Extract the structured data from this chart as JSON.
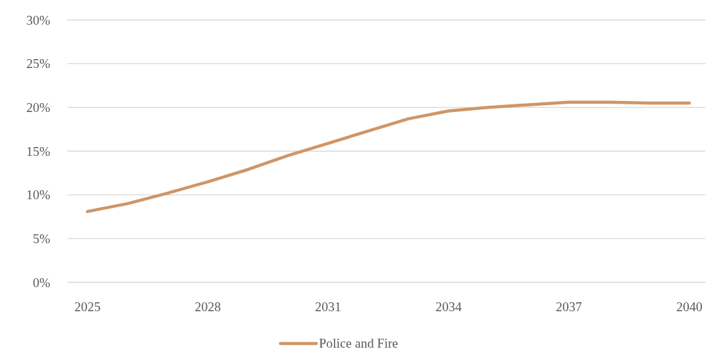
{
  "chart_data": {
    "type": "line",
    "x": [
      2025,
      2026,
      2027,
      2028,
      2029,
      2030,
      2031,
      2032,
      2033,
      2034,
      2035,
      2036,
      2037,
      2038,
      2039,
      2040
    ],
    "series": [
      {
        "name": "Police and Fire",
        "color": "#d09565",
        "values": [
          8.1,
          9.0,
          10.2,
          11.5,
          12.9,
          14.5,
          15.9,
          17.3,
          18.7,
          19.6,
          20.0,
          20.3,
          20.6,
          20.6,
          20.5,
          20.5
        ]
      }
    ],
    "xlim": [
      2024.5,
      2040.4
    ],
    "xticks": [
      2025,
      2028,
      2031,
      2034,
      2037,
      2040
    ],
    "ylim": [
      0,
      30
    ],
    "yticks": [
      {
        "value": 0,
        "label": "0%"
      },
      {
        "value": 5,
        "label": "5%"
      },
      {
        "value": 10,
        "label": "10%"
      },
      {
        "value": 15,
        "label": "15%"
      },
      {
        "value": 20,
        "label": "20%"
      },
      {
        "value": 25,
        "label": "25%"
      },
      {
        "value": 30,
        "label": "30%"
      }
    ],
    "grid": "y",
    "legend": "bottom",
    "marker": "none",
    "line_style": "solid"
  }
}
